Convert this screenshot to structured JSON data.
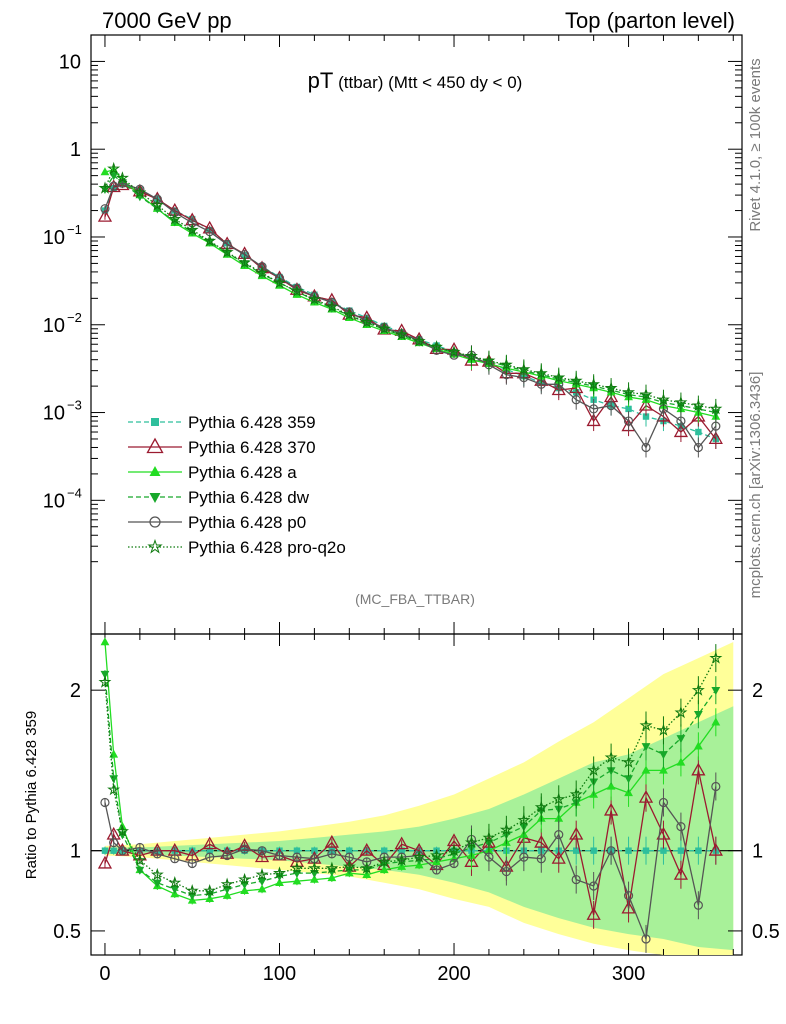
{
  "header": {
    "left": "7000 GeV pp",
    "right": "Top (parton level)"
  },
  "side_labels": {
    "rivet": "Rivet 4.1.0, ≥ 100k events",
    "mcplots": "mcplots.cern.ch [arXiv:1306.3436]"
  },
  "chart_data": {
    "type": "line",
    "title_main": "pT",
    "title_sub": " (ttbar) (Mtt < 450 dy < 0)",
    "analysis_label": "(MC_FBA_TTBAR)",
    "xlabel": "",
    "ylabel_main": "",
    "ylabel_ratio": "Ratio to Pythia 6.428 359",
    "xlim": [
      -8,
      365
    ],
    "ylim_main": [
      3e-06,
      20
    ],
    "yscale_main": "log",
    "ylim_ratio": [
      0.35,
      2.35
    ],
    "x_ticks": [
      "0",
      "100",
      "200",
      "300"
    ],
    "y_ticks_main": [
      {
        "base": "10",
        "exp": "",
        "value": 10
      },
      {
        "base": "1",
        "exp": "",
        "value": 1
      },
      {
        "base": "10",
        "exp": "−1",
        "value": 0.1
      },
      {
        "base": "10",
        "exp": "−2",
        "value": 0.01
      },
      {
        "base": "10",
        "exp": "−3",
        "value": 0.001
      },
      {
        "base": "10",
        "exp": "−4",
        "value": 0.0001
      }
    ],
    "y_ticks_ratio": [
      "0.5",
      "1",
      "2"
    ],
    "series": [
      {
        "name": "Pythia 6.428 359",
        "color": "#2ebf9c",
        "dash": "5,3",
        "marker": "square",
        "x": [
          0,
          5,
          10,
          20,
          30,
          40,
          50,
          60,
          70,
          80,
          90,
          100,
          110,
          120,
          130,
          140,
          150,
          160,
          170,
          180,
          190,
          200,
          210,
          220,
          230,
          240,
          250,
          260,
          270,
          280,
          290,
          300,
          310,
          320,
          330,
          340,
          350
        ],
        "y": [
          0.2,
          0.36,
          0.4,
          0.34,
          0.27,
          0.2,
          0.16,
          0.12,
          0.085,
          0.062,
          0.046,
          0.035,
          0.027,
          0.022,
          0.018,
          0.0145,
          0.012,
          0.0097,
          0.0082,
          0.0068,
          0.0058,
          0.0049,
          0.0042,
          0.0036,
          0.0031,
          0.0026,
          0.0022,
          0.0019,
          0.0017,
          0.0014,
          0.0012,
          0.0011,
          0.0009,
          0.0008,
          0.0007,
          0.0006,
          0.0005
        ],
        "ratio": [
          1,
          1,
          1,
          1,
          1,
          1,
          1,
          1,
          1,
          1,
          1,
          1,
          1,
          1,
          1,
          1,
          1,
          1,
          1,
          1,
          1,
          1,
          1,
          1,
          1,
          1,
          1,
          1,
          1,
          1,
          1,
          1,
          1,
          1,
          1,
          1,
          1
        ]
      },
      {
        "name": "Pythia 6.428 370",
        "color": "#9b1b30",
        "dash": "",
        "marker": "triangle-open",
        "x": [
          0,
          5,
          10,
          20,
          30,
          40,
          50,
          60,
          70,
          80,
          90,
          100,
          110,
          120,
          130,
          140,
          150,
          160,
          170,
          180,
          190,
          200,
          210,
          220,
          230,
          240,
          250,
          260,
          270,
          280,
          290,
          300,
          310,
          320,
          330,
          340,
          350
        ],
        "y": [
          0.17,
          0.37,
          0.39,
          0.33,
          0.27,
          0.2,
          0.155,
          0.125,
          0.083,
          0.064,
          0.044,
          0.034,
          0.025,
          0.021,
          0.019,
          0.013,
          0.012,
          0.0088,
          0.0085,
          0.0068,
          0.0053,
          0.0052,
          0.0039,
          0.0038,
          0.0028,
          0.0028,
          0.0023,
          0.0018,
          0.0019,
          0.0008,
          0.0015,
          0.0007,
          0.0012,
          0.0009,
          0.0006,
          0.0009,
          0.0005
        ],
        "ratio": [
          0.92,
          1.1,
          1.0,
          0.97,
          1.0,
          1.0,
          0.97,
          1.04,
          0.98,
          1.03,
          0.96,
          0.97,
          0.93,
          0.95,
          1.05,
          0.9,
          1.0,
          0.91,
          1.04,
          1.0,
          0.91,
          1.06,
          0.93,
          1.05,
          0.9,
          1.08,
          1.05,
          0.95,
          1.1,
          0.6,
          1.25,
          0.64,
          1.33,
          1.1,
          0.85,
          1.5,
          1.0
        ]
      },
      {
        "name": "Pythia 6.428 a",
        "color": "#22dd22",
        "dash": "",
        "marker": "triangle",
        "x": [
          0,
          5,
          10,
          20,
          30,
          40,
          50,
          60,
          70,
          80,
          90,
          100,
          110,
          120,
          130,
          140,
          150,
          160,
          170,
          180,
          190,
          200,
          210,
          220,
          230,
          240,
          250,
          260,
          270,
          280,
          290,
          300,
          310,
          320,
          330,
          340,
          350
        ],
        "y": [
          0.55,
          0.58,
          0.45,
          0.3,
          0.21,
          0.145,
          0.11,
          0.085,
          0.063,
          0.047,
          0.036,
          0.028,
          0.022,
          0.018,
          0.015,
          0.012,
          0.01,
          0.0085,
          0.0073,
          0.0062,
          0.0053,
          0.0046,
          0.004,
          0.0036,
          0.0032,
          0.0029,
          0.0026,
          0.0023,
          0.0021,
          0.0019,
          0.0017,
          0.0015,
          0.0014,
          0.0012,
          0.0011,
          0.001,
          0.0009
        ],
        "ratio": [
          2.3,
          1.6,
          1.15,
          0.88,
          0.78,
          0.73,
          0.69,
          0.7,
          0.72,
          0.75,
          0.76,
          0.8,
          0.81,
          0.82,
          0.83,
          0.86,
          0.85,
          0.88,
          0.9,
          0.91,
          0.93,
          0.95,
          0.97,
          1.0,
          1.05,
          1.1,
          1.2,
          1.2,
          1.3,
          1.35,
          1.4,
          1.36,
          1.5,
          1.5,
          1.55,
          1.65,
          1.8
        ]
      },
      {
        "name": "Pythia 6.428 dw",
        "color": "#17a82a",
        "dash": "5,3",
        "marker": "triangle-down",
        "x": [
          0,
          5,
          10,
          20,
          30,
          40,
          50,
          60,
          70,
          80,
          90,
          100,
          110,
          120,
          130,
          140,
          150,
          160,
          170,
          180,
          190,
          200,
          210,
          220,
          230,
          240,
          250,
          260,
          270,
          280,
          290,
          300,
          310,
          320,
          330,
          340,
          350
        ],
        "y": [
          0.35,
          0.5,
          0.42,
          0.29,
          0.21,
          0.15,
          0.115,
          0.088,
          0.066,
          0.05,
          0.038,
          0.03,
          0.024,
          0.019,
          0.0155,
          0.0128,
          0.0105,
          0.0089,
          0.0076,
          0.0064,
          0.0055,
          0.0048,
          0.0043,
          0.0038,
          0.0034,
          0.003,
          0.0027,
          0.0024,
          0.0022,
          0.002,
          0.0018,
          0.0016,
          0.0015,
          0.0013,
          0.0012,
          0.0011,
          0.001
        ],
        "ratio": [
          2.1,
          1.45,
          1.1,
          0.88,
          0.8,
          0.76,
          0.72,
          0.73,
          0.76,
          0.79,
          0.81,
          0.84,
          0.86,
          0.86,
          0.87,
          0.88,
          0.88,
          0.92,
          0.93,
          0.94,
          0.95,
          0.98,
          1.02,
          1.05,
          1.1,
          1.15,
          1.25,
          1.26,
          1.3,
          1.43,
          1.5,
          1.45,
          1.65,
          1.6,
          1.7,
          1.85,
          2.0
        ]
      },
      {
        "name": "Pythia 6.428 p0",
        "color": "#555555",
        "dash": "",
        "marker": "circle-open",
        "x": [
          0,
          5,
          10,
          20,
          30,
          40,
          50,
          60,
          70,
          80,
          90,
          100,
          110,
          120,
          130,
          140,
          150,
          160,
          170,
          180,
          190,
          200,
          210,
          220,
          230,
          240,
          250,
          260,
          270,
          280,
          290,
          300,
          310,
          320,
          330,
          340,
          350
        ],
        "y": [
          0.21,
          0.38,
          0.41,
          0.35,
          0.27,
          0.19,
          0.145,
          0.115,
          0.082,
          0.063,
          0.046,
          0.034,
          0.026,
          0.021,
          0.018,
          0.014,
          0.011,
          0.0093,
          0.0079,
          0.0066,
          0.0051,
          0.0045,
          0.0045,
          0.0035,
          0.0027,
          0.0025,
          0.0021,
          0.0021,
          0.0014,
          0.0011,
          0.0012,
          0.0008,
          0.0004,
          0.0011,
          0.0008,
          0.0004,
          0.0007
        ],
        "ratio": [
          1.3,
          1.05,
          1.0,
          1.02,
          0.98,
          0.95,
          0.92,
          0.96,
          0.97,
          1.01,
          1.0,
          0.97,
          0.96,
          0.95,
          0.98,
          0.96,
          0.93,
          0.96,
          0.96,
          0.97,
          0.88,
          0.92,
          1.07,
          0.96,
          0.87,
          0.96,
          0.95,
          1.1,
          0.82,
          0.78,
          1.0,
          0.72,
          0.45,
          1.3,
          1.15,
          0.66,
          1.4
        ]
      },
      {
        "name": "Pythia 6.428 pro-q2o",
        "color": "#0f7a0f",
        "dash": "1.5,2",
        "marker": "star-open",
        "x": [
          0,
          5,
          10,
          20,
          30,
          40,
          50,
          60,
          70,
          80,
          90,
          100,
          110,
          120,
          130,
          140,
          150,
          160,
          170,
          180,
          190,
          200,
          210,
          220,
          230,
          240,
          250,
          260,
          270,
          280,
          290,
          300,
          310,
          320,
          330,
          340,
          350
        ],
        "y": [
          0.36,
          0.6,
          0.47,
          0.32,
          0.23,
          0.16,
          0.12,
          0.09,
          0.067,
          0.051,
          0.039,
          0.03,
          0.024,
          0.0195,
          0.016,
          0.013,
          0.0107,
          0.009,
          0.0077,
          0.0065,
          0.0056,
          0.0049,
          0.0044,
          0.0039,
          0.0035,
          0.0031,
          0.0028,
          0.0025,
          0.0023,
          0.0021,
          0.0019,
          0.0017,
          0.0016,
          0.0014,
          0.0013,
          0.0012,
          0.0011
        ],
        "ratio": [
          2.05,
          1.38,
          1.12,
          0.94,
          0.85,
          0.8,
          0.75,
          0.75,
          0.79,
          0.82,
          0.85,
          0.86,
          0.89,
          0.89,
          0.89,
          0.9,
          0.89,
          0.93,
          0.94,
          0.96,
          0.97,
          1.0,
          1.05,
          1.08,
          1.13,
          1.19,
          1.27,
          1.32,
          1.35,
          1.5,
          1.58,
          1.55,
          1.78,
          1.75,
          1.86,
          2.0,
          2.2
        ]
      }
    ],
    "reference_band": {
      "x": [
        0,
        20,
        40,
        60,
        80,
        100,
        120,
        140,
        160,
        180,
        200,
        220,
        240,
        260,
        280,
        300,
        320,
        340,
        360
      ],
      "yellow_up": [
        1.03,
        1.04,
        1.06,
        1.08,
        1.1,
        1.12,
        1.15,
        1.18,
        1.22,
        1.28,
        1.35,
        1.45,
        1.55,
        1.68,
        1.8,
        1.95,
        2.1,
        2.2,
        2.3
      ],
      "yellow_dn": [
        0.97,
        0.96,
        0.94,
        0.92,
        0.9,
        0.88,
        0.86,
        0.84,
        0.8,
        0.76,
        0.7,
        0.65,
        0.55,
        0.48,
        0.42,
        0.38,
        0.35,
        0.35,
        0.35
      ],
      "green_up": [
        1.02,
        1.02,
        1.03,
        1.04,
        1.05,
        1.06,
        1.08,
        1.1,
        1.12,
        1.15,
        1.2,
        1.26,
        1.35,
        1.45,
        1.55,
        1.6,
        1.7,
        1.8,
        1.9
      ],
      "green_dn": [
        0.98,
        0.98,
        0.97,
        0.96,
        0.95,
        0.94,
        0.92,
        0.9,
        0.88,
        0.85,
        0.8,
        0.74,
        0.65,
        0.58,
        0.52,
        0.48,
        0.45,
        0.4,
        0.38
      ]
    }
  }
}
